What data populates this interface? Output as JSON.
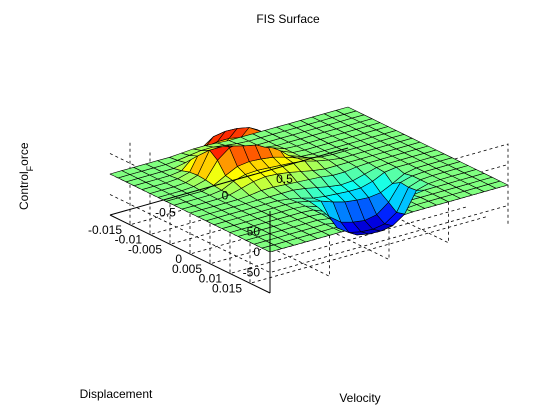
{
  "chart_data": {
    "type": "surface",
    "title": "FIS Surface",
    "xlabel": "Velocity",
    "ylabel": "Displacement",
    "zlabel": "Control_Force",
    "zlabel_main": "Control",
    "zlabel_sub": "F",
    "zlabel_rest": "orce",
    "xlim": [
      -1,
      1
    ],
    "ylim": [
      -0.02,
      0.02
    ],
    "zlim": [
      -100,
      100
    ],
    "x_ticks": [
      -0.5,
      0,
      0.5
    ],
    "y_ticks": [
      -0.015,
      -0.01,
      -0.005,
      0,
      0.005,
      0.01,
      0.015
    ],
    "z_ticks": [
      -50,
      0,
      50
    ],
    "x_tick_labels": [
      "-0.5",
      "0",
      "0.5"
    ],
    "y_tick_labels": [
      "-0.015",
      "-0.01",
      "-0.005",
      "0",
      "0.005",
      "0.01",
      "0.015"
    ],
    "z_tick_labels": [
      "-50",
      "0",
      "50"
    ],
    "grid": true,
    "colormap": "jet",
    "x": [
      -1,
      -0.9,
      -0.8,
      -0.7,
      -0.6,
      -0.5,
      -0.4,
      -0.3,
      -0.2,
      -0.1,
      0,
      0.1,
      0.2,
      0.3,
      0.4,
      0.5,
      0.6,
      0.7,
      0.8,
      0.9,
      1
    ],
    "y": [
      -0.02,
      -0.018,
      -0.016,
      -0.014,
      -0.012,
      -0.01,
      -0.008,
      -0.006,
      -0.004,
      -0.002,
      0,
      0.002,
      0.004,
      0.006,
      0.008,
      0.01,
      0.012,
      0.014,
      0.016,
      0.018,
      0.02
    ],
    "z_description_rows_by_displacement": "z[i][j] control force for displacement y[i] and velocity x[j]",
    "z": [
      [
        0,
        0,
        0,
        0,
        0,
        0,
        2,
        4,
        4,
        2,
        0,
        0,
        0,
        0,
        0,
        0,
        0,
        0,
        0,
        0,
        0
      ],
      [
        0,
        0,
        0,
        0,
        0,
        2,
        6,
        10,
        10,
        6,
        2,
        0,
        0,
        0,
        0,
        0,
        0,
        0,
        0,
        0,
        0
      ],
      [
        0,
        0,
        0,
        0,
        0,
        6,
        14,
        20,
        20,
        14,
        6,
        0,
        0,
        0,
        0,
        0,
        0,
        0,
        0,
        0,
        0
      ],
      [
        0,
        0,
        0,
        0,
        4,
        30,
        45,
        50,
        50,
        44,
        30,
        4,
        0,
        0,
        0,
        0,
        0,
        0,
        0,
        0,
        0
      ],
      [
        0,
        0,
        0,
        2,
        10,
        60,
        80,
        85,
        84,
        78,
        60,
        12,
        2,
        0,
        0,
        0,
        0,
        0,
        0,
        0,
        0
      ],
      [
        0,
        0,
        0,
        2,
        12,
        65,
        85,
        90,
        88,
        82,
        62,
        14,
        2,
        0,
        0,
        0,
        0,
        0,
        0,
        0,
        0
      ],
      [
        0,
        0,
        0,
        2,
        10,
        50,
        72,
        78,
        74,
        66,
        44,
        12,
        2,
        0,
        0,
        0,
        0,
        0,
        0,
        0,
        0
      ],
      [
        0,
        0,
        0,
        0,
        6,
        22,
        36,
        40,
        38,
        34,
        26,
        16,
        8,
        2,
        0,
        0,
        0,
        0,
        0,
        0,
        0
      ],
      [
        0,
        0,
        0,
        0,
        4,
        18,
        26,
        28,
        26,
        24,
        22,
        18,
        10,
        4,
        0,
        0,
        0,
        0,
        0,
        0,
        0
      ],
      [
        0,
        0,
        0,
        0,
        2,
        10,
        18,
        22,
        20,
        16,
        10,
        4,
        0,
        0,
        0,
        0,
        0,
        0,
        0,
        0,
        0
      ],
      [
        0,
        0,
        0,
        0,
        0,
        2,
        6,
        6,
        4,
        2,
        0,
        -2,
        -6,
        -6,
        -2,
        0,
        0,
        0,
        0,
        0,
        0
      ],
      [
        0,
        0,
        0,
        0,
        0,
        0,
        0,
        0,
        0,
        -4,
        -10,
        -16,
        -20,
        -18,
        -10,
        -2,
        0,
        0,
        0,
        0,
        0
      ],
      [
        0,
        0,
        0,
        0,
        0,
        0,
        0,
        -4,
        -10,
        -18,
        -22,
        -24,
        -26,
        -26,
        -18,
        -4,
        0,
        0,
        0,
        0,
        0
      ],
      [
        0,
        0,
        0,
        0,
        0,
        0,
        0,
        -2,
        -8,
        -16,
        -26,
        -34,
        -38,
        -40,
        -36,
        -22,
        -6,
        0,
        0,
        0,
        0
      ],
      [
        0,
        0,
        0,
        0,
        0,
        0,
        0,
        -2,
        -12,
        -44,
        -66,
        -74,
        -78,
        -72,
        -50,
        -10,
        -2,
        0,
        0,
        0,
        0
      ],
      [
        0,
        0,
        0,
        0,
        0,
        0,
        0,
        -2,
        -14,
        -62,
        -82,
        -88,
        -90,
        -85,
        -65,
        -12,
        -2,
        0,
        0,
        0,
        0
      ],
      [
        0,
        0,
        0,
        0,
        0,
        0,
        0,
        -2,
        -12,
        -60,
        -78,
        -84,
        -85,
        -80,
        -60,
        -10,
        -2,
        0,
        0,
        0,
        0
      ],
      [
        0,
        0,
        0,
        0,
        0,
        0,
        0,
        -4,
        -30,
        -44,
        -50,
        -50,
        -45,
        -30,
        -4,
        0,
        0,
        0,
        0,
        0,
        0
      ],
      [
        0,
        0,
        0,
        0,
        0,
        0,
        0,
        -6,
        -14,
        -20,
        -20,
        -14,
        -6,
        0,
        0,
        0,
        0,
        0,
        0,
        0,
        0
      ],
      [
        0,
        0,
        0,
        0,
        0,
        0,
        0,
        -2,
        -6,
        -10,
        -10,
        -6,
        -2,
        0,
        0,
        0,
        0,
        0,
        0,
        0,
        0
      ],
      [
        0,
        0,
        0,
        0,
        0,
        0,
        0,
        0,
        -2,
        -4,
        -4,
        -2,
        0,
        0,
        0,
        0,
        0,
        0,
        0,
        0,
        0
      ]
    ]
  }
}
